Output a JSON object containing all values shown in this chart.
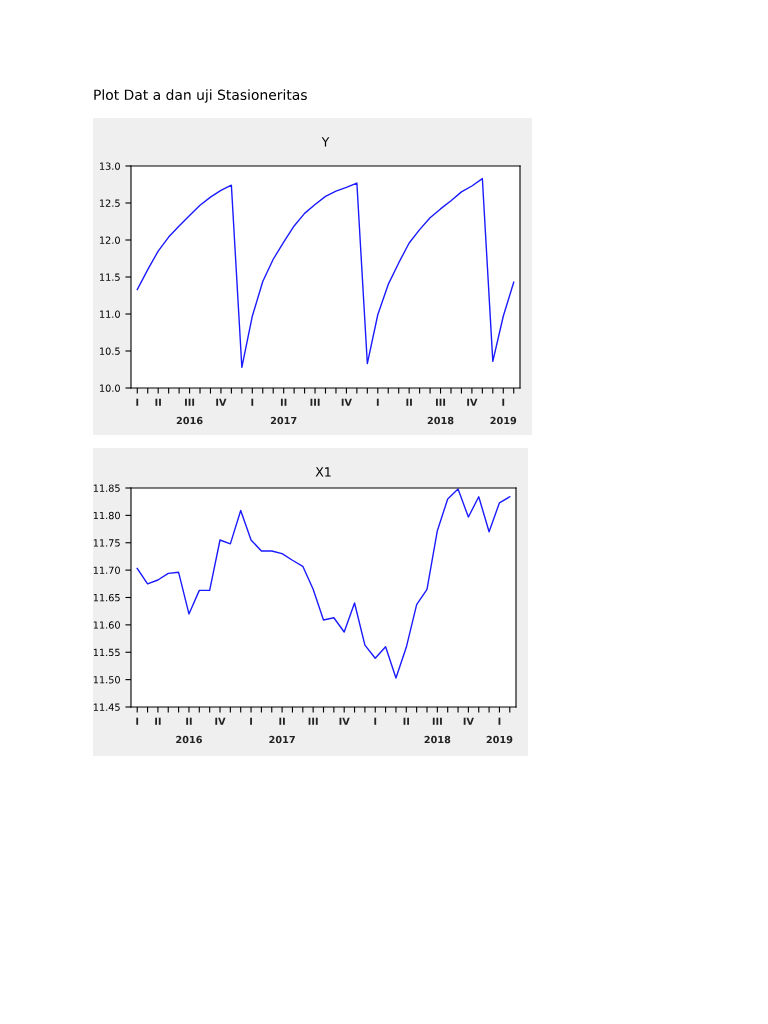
{
  "chart_data": [
    {
      "type": "line",
      "title": "Y",
      "annotations": [
        "Plot Dat a dan uji Stasioneritas"
      ],
      "categories": [
        "I",
        null,
        "II",
        null,
        null,
        "III\n2016",
        null,
        null,
        "IV",
        null,
        null,
        "I",
        null,
        null,
        "II\n2017",
        null,
        null,
        "III",
        null,
        null,
        "IV",
        null,
        null,
        "I",
        null,
        null,
        "II",
        null,
        null,
        "III\n2018",
        null,
        null,
        "IV",
        null,
        null,
        "I\n2019",
        null
      ],
      "series": [
        {
          "color": "#1a1aff",
          "values": [
            11.33,
            11.6,
            11.85,
            12.04,
            12.19,
            12.33,
            12.47,
            12.58,
            12.67,
            12.74,
            10.28,
            10.97,
            11.44,
            11.74,
            11.97,
            12.19,
            12.36,
            12.48,
            12.59,
            12.66,
            12.71,
            12.77,
            10.33,
            10.99,
            11.4,
            11.69,
            11.96,
            12.14,
            12.3,
            12.42,
            12.53,
            12.65,
            12.73,
            12.83,
            10.36,
            10.97,
            11.43
          ]
        }
      ],
      "ylim": [
        10.0,
        13.0
      ],
      "yticks": [
        {
          "value": 10.0,
          "label": "10.0"
        },
        {
          "value": 10.5,
          "label": "10.5"
        },
        {
          "value": 11.0,
          "label": "11.0"
        },
        {
          "value": 11.5,
          "label": "11.5"
        },
        {
          "value": 12.0,
          "label": "12.0"
        },
        {
          "value": 12.5,
          "label": "12.5"
        },
        {
          "value": 13.0,
          "label": "13.0"
        }
      ],
      "grid": false,
      "legend": false
    },
    {
      "type": "line",
      "title": "X1",
      "categories": [
        "I",
        null,
        "II",
        null,
        null,
        "II\n2016",
        null,
        null,
        "IV",
        null,
        null,
        "I",
        null,
        null,
        "II\n2017",
        null,
        null,
        "III",
        null,
        null,
        "IV",
        null,
        null,
        "I",
        null,
        null,
        "II",
        null,
        null,
        "III\n2018",
        null,
        null,
        "IV",
        null,
        null,
        "I\n2019",
        null
      ],
      "series": [
        {
          "color": "#1a1aff",
          "values": [
            11.703,
            11.675,
            11.682,
            11.694,
            11.696,
            11.62,
            11.663,
            11.663,
            11.755,
            11.748,
            11.809,
            11.755,
            11.735,
            11.735,
            11.73,
            11.718,
            11.707,
            11.665,
            11.609,
            11.613,
            11.587,
            11.64,
            11.563,
            11.539,
            11.56,
            11.503,
            11.559,
            11.637,
            11.665,
            11.772,
            11.83,
            11.848,
            11.797,
            11.834,
            11.77,
            11.823,
            11.834
          ]
        }
      ],
      "ylim": [
        11.45,
        11.85
      ],
      "yticks": [
        11.45,
        {
          "value": 11.5,
          "label": "11.50"
        },
        11.55,
        {
          "value": 11.6,
          "label": "11.60"
        },
        11.65,
        {
          "value": 11.7,
          "label": "11.70"
        },
        11.75,
        {
          "value": 11.8,
          "label": "11.80"
        },
        11.85
      ],
      "grid": false,
      "legend": false
    }
  ]
}
